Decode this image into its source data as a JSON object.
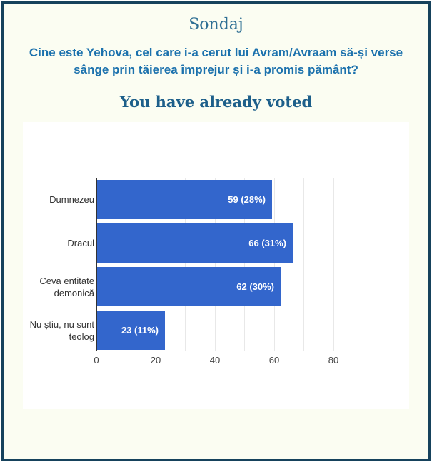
{
  "header": {
    "title": "Sondaj",
    "question": "Cine este Yehova, cel care i-a cerut lui Avram/Avraam să-și verse sânge prin tăierea împrejur și i-a promis pământ?",
    "status": "You have already voted"
  },
  "colors": {
    "frame_border": "#16425c",
    "frame_background": "#fbfdf2",
    "panel_background": "#ffffff",
    "title_text": "#2d6e93",
    "question_text": "#1b71ad",
    "status_text": "#1d5f8a",
    "bar_fill": "#3366cc",
    "bar_value_text": "#ffffff",
    "category_text": "#333333",
    "tick_text": "#444444",
    "gridline": "#e8e8e8",
    "axis_line": "#333333"
  },
  "chart_data": {
    "type": "bar",
    "orientation": "horizontal",
    "title": "",
    "xlabel": "",
    "ylabel": "",
    "legend": "none",
    "grid": true,
    "categories": [
      "Dumnezeu",
      "Dracul",
      "Ceva entitate demonică",
      "Nu știu, nu sunt teolog"
    ],
    "values": [
      59,
      66,
      62,
      23
    ],
    "percentages": [
      28,
      31,
      30,
      11
    ],
    "bar_labels": [
      "59 (28%)",
      "66 (31%)",
      "62 (30%)",
      "23 (11%)"
    ],
    "x_ticks": [
      0,
      20,
      40,
      60,
      80
    ],
    "xlim": [
      0,
      95
    ],
    "gridline_interval": 10
  }
}
